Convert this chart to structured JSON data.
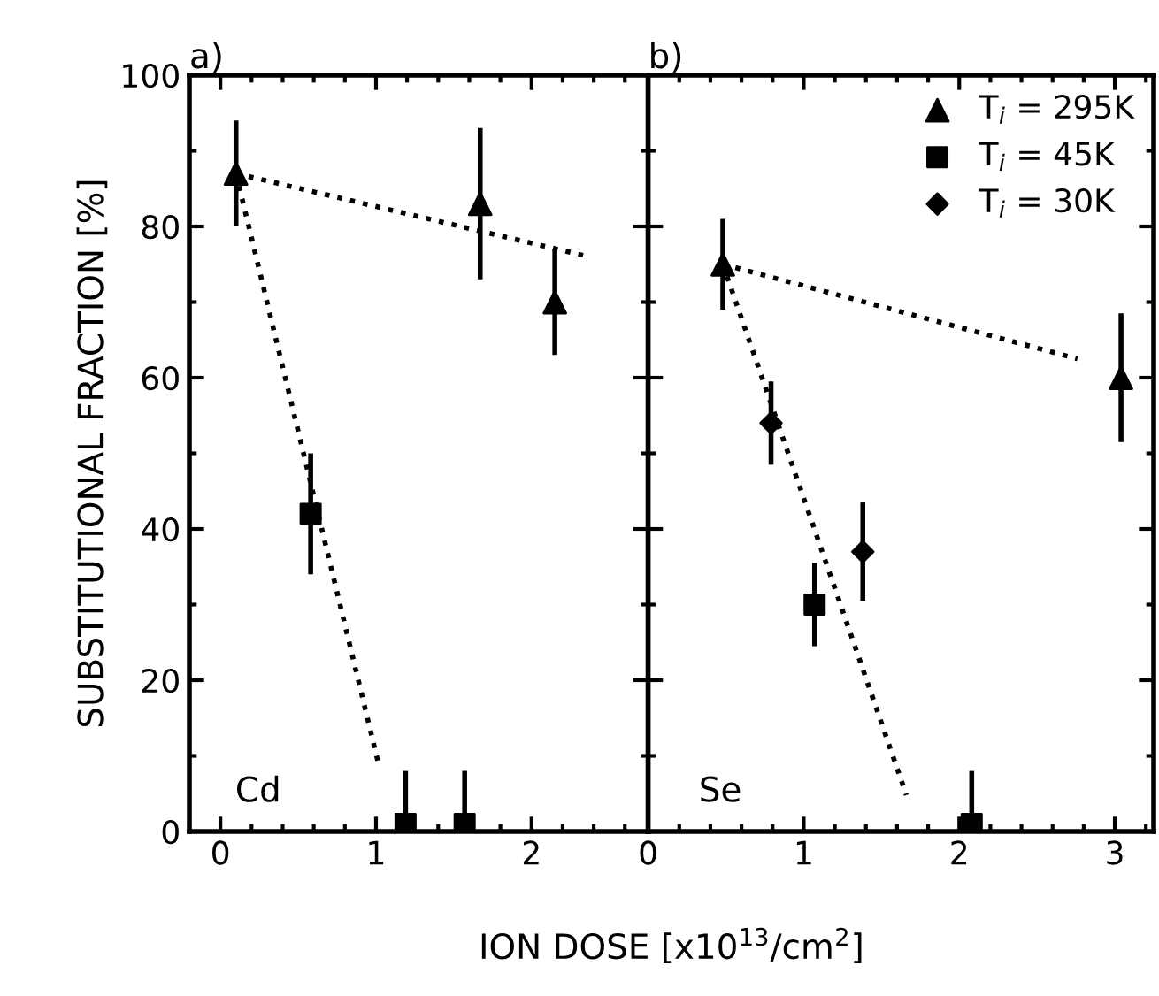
{
  "chart_data": [
    {
      "type": "scatter",
      "title": "a)",
      "ylabel": "SUBSTITUTIONAL FRACTION [%]",
      "xlabel": "ION DOSE [x10$^{13}$/cm$^{2}$]",
      "annotations": [
        "Cd"
      ],
      "xlim": [
        -0.2,
        2.75
      ],
      "xticks": [
        0,
        1,
        2
      ],
      "ylim": [
        0,
        100
      ],
      "yticks": [
        0,
        20,
        40,
        60,
        80,
        100
      ],
      "grid": false,
      "legend": false,
      "series": [
        {
          "color": "#000000",
          "marker": "triangle",
          "x": [
            0.1,
            1.67,
            2.15
          ],
          "values": [
            87,
            83,
            70
          ],
          "errors": [
            7,
            10,
            7
          ]
        },
        {
          "color": "#000000",
          "marker": "square",
          "x": [
            0.58,
            1.19,
            1.57
          ],
          "values": [
            42,
            1,
            1
          ],
          "errors": [
            8,
            [
              0,
              8
            ],
            [
              0,
              8
            ]
          ]
        },
        {
          "type": "line",
          "color": "#000000",
          "marker": "none",
          "line_style": "dotted",
          "x": [
            0.1,
            2.37
          ],
          "values": [
            87,
            76
          ]
        },
        {
          "type": "line",
          "color": "#000000",
          "marker": "none",
          "line_style": "dotted",
          "x": [
            0.1,
            1.02
          ],
          "values": [
            87,
            8.6
          ]
        }
      ]
    },
    {
      "type": "scatter",
      "title": "b)",
      "annotations": [
        "Se"
      ],
      "tick_labels": "x",
      "xlim": [
        0,
        3.25
      ],
      "xticks": [
        0,
        1,
        2,
        3
      ],
      "ylim": [
        0,
        100
      ],
      "yticks": [
        0,
        20,
        40,
        60,
        80,
        100
      ],
      "grid": false,
      "legend": "top right",
      "series": [
        {
          "name": "T$_{i}$ = 295K",
          "color": "#000000",
          "marker": "triangle",
          "x": [
            0.48,
            3.04
          ],
          "values": [
            75,
            60
          ],
          "errors": [
            6,
            8.5
          ]
        },
        {
          "name": "T$_{i}$ = 45K",
          "color": "#000000",
          "marker": "square",
          "x": [
            1.07,
            2.08
          ],
          "values": [
            30,
            1
          ],
          "errors": [
            5.5,
            [
              0,
              8
            ]
          ]
        },
        {
          "name": "T$_{i}$ = 30K",
          "color": "#000000",
          "marker": "diamond",
          "x": [
            0.79,
            1.38
          ],
          "values": [
            54,
            37
          ],
          "errors": [
            5.5,
            6.5
          ]
        },
        {
          "type": "line",
          "color": "#000000",
          "marker": "none",
          "line_style": "dotted",
          "x": [
            0.48,
            2.76
          ],
          "values": [
            75,
            62.5
          ]
        },
        {
          "type": "line",
          "color": "#000000",
          "marker": "none",
          "line_style": "dotted",
          "x": [
            0.48,
            1.66
          ],
          "values": [
            75,
            4.8
          ]
        }
      ]
    }
  ]
}
